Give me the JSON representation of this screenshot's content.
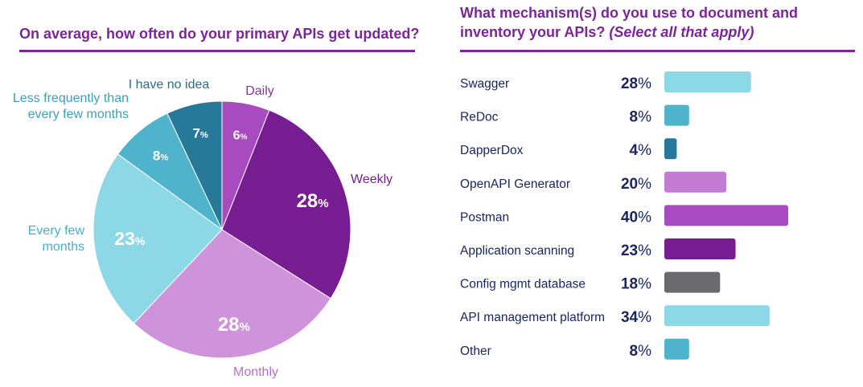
{
  "chart_data": [
    {
      "type": "pie",
      "title": "On average, how often do your primary APIs get updated?",
      "slices": [
        {
          "label": "Daily",
          "value": 6,
          "color": "#a84bc1",
          "label_color": "#8b2fa8"
        },
        {
          "label": "Weekly",
          "value": 28,
          "color": "#781d91",
          "label_color": "#781d91"
        },
        {
          "label": "Monthly",
          "value": 28,
          "color": "#cf93dc",
          "label_color": "#b46fd0"
        },
        {
          "label": "Every few months",
          "value": 23,
          "color": "#8dd8e6",
          "label_color": "#4aaec6"
        },
        {
          "label": "Less frequently than every few months",
          "value": 8,
          "color": "#4fb4cb",
          "label_color": "#3f9fb8"
        },
        {
          "label": "I have no idea",
          "value": 7,
          "color": "#27799a",
          "label_color": "#2b6e8e"
        }
      ],
      "value_suffix": "%"
    },
    {
      "type": "bar",
      "orientation": "horizontal",
      "title": "What mechanism(s) do you use to document and inventory your APIs?",
      "title_note": "(Select all that apply)",
      "categories": [
        "Swagger",
        "ReDoc",
        "DapperDox",
        "OpenAPI Generator",
        "Postman",
        "Application scanning",
        "Config mgmt database",
        "API management platform",
        "Other"
      ],
      "values": [
        28,
        8,
        4,
        20,
        40,
        23,
        18,
        34,
        8
      ],
      "colors": [
        "#8dd8e6",
        "#4fb4cb",
        "#27799a",
        "#c27ad3",
        "#a84bc1",
        "#781d91",
        "#6b6b6f",
        "#8dd8e6",
        "#4fb4cb"
      ],
      "value_suffix": "%",
      "xlim": [
        0,
        40
      ]
    }
  ]
}
